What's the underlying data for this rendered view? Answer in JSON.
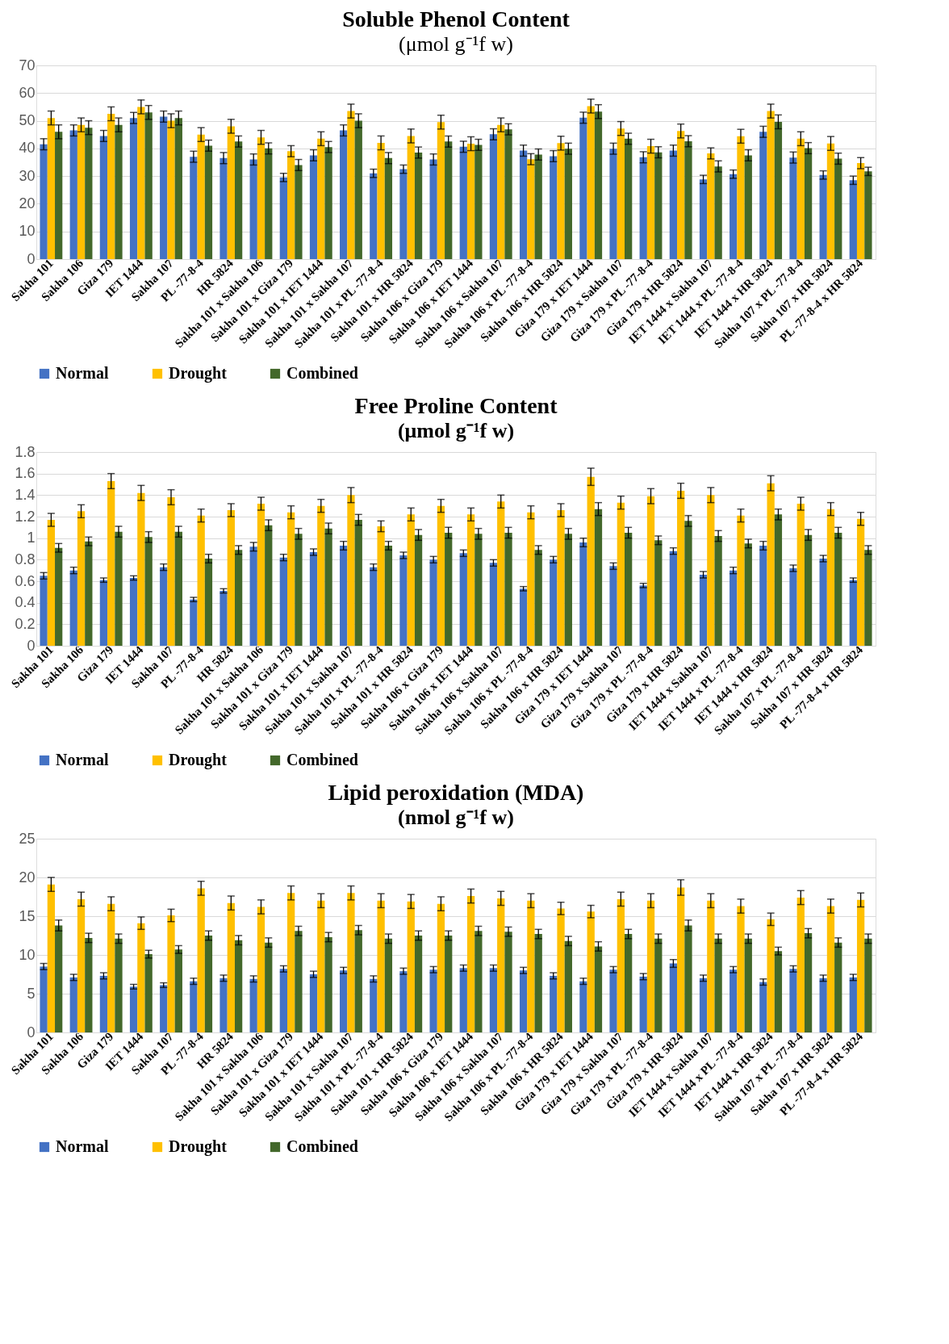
{
  "chart_data": [
    {
      "type": "bar",
      "title": "Soluble Phenol Content",
      "subtitle": "(μmol g⁻¹f w)",
      "categories": [
        "Sakha 101",
        "Sakha 106",
        "Giza 179",
        "IET 1444",
        "Sakha 107",
        "PL -77-8-4",
        "HR 5824",
        "Sakha 101 x Sakha 106",
        "Sakha 101 x Giza 179",
        "Sakha 101 x IET 1444",
        "Sakha 101 x Sakha 107",
        "Sakha 101 x PL -77-8-4",
        "Sakha 101 x HR 5824",
        "Sakha 106 x Giza 179",
        "Sakha 106 x IET 1444",
        "Sakha 106 x Sakha 107",
        "Sakha 106 x PL -77-8-4",
        "Sakha 106 x HR 5824",
        "Giza 179 x IET 1444",
        "Giza 179 x Sakha 107",
        "Giza 179 x PL -77-8-4",
        "Giza 179 x HR 5824",
        "IET 1444 x Sakha 107",
        "IET 1444 x PL -77-8-4",
        "IET 1444 x HR 5824",
        "Sakha 107 x PL -77-8-4",
        "Sakha 107 x HR 5824",
        "PL -77-8-4 x HR 5824"
      ],
      "series": [
        {
          "name": "Normal",
          "color": "#4472c4",
          "values": [
            41.5,
            46.5,
            44.5,
            51,
            51.5,
            37,
            36.5,
            36,
            29.5,
            37.5,
            46.5,
            31,
            32.5,
            36,
            40.6,
            45.1,
            39.2,
            37.2,
            51.1,
            39.9,
            36.8,
            39.2,
            28.8,
            30.7,
            46,
            36.7,
            30.4,
            28.5
          ],
          "errors": [
            2,
            2,
            2,
            2,
            2,
            2,
            2,
            2,
            1.5,
            2,
            2,
            1.5,
            1.5,
            2,
            2,
            2,
            2,
            2,
            2,
            2,
            2,
            2,
            1.5,
            1.5,
            2,
            2,
            1.5,
            1.5
          ]
        },
        {
          "name": "Drought",
          "color": "#ffc000",
          "values": [
            51,
            48.5,
            52.5,
            55,
            50,
            45,
            48,
            44,
            39,
            43.5,
            53.5,
            42,
            44.5,
            49.5,
            41.7,
            48.5,
            36.1,
            41.9,
            55.3,
            47.2,
            40.8,
            46.3,
            38.2,
            44.4,
            53.5,
            43.5,
            41.8,
            34.7
          ],
          "errors": [
            2.5,
            2.5,
            2.5,
            2.5,
            2.5,
            2.5,
            2.5,
            2.5,
            2,
            2.5,
            2.5,
            2.5,
            2.5,
            2.5,
            2.5,
            2.5,
            2,
            2.5,
            2.5,
            2.5,
            2.5,
            2.5,
            2,
            2.5,
            2.5,
            2.5,
            2.5,
            2
          ]
        },
        {
          "name": "Combined",
          "color": "#43682b",
          "values": [
            46,
            47.5,
            48.5,
            53,
            51,
            41,
            42.5,
            40,
            34,
            40.5,
            50,
            36.5,
            38.5,
            42.5,
            41.3,
            46.9,
            37.8,
            39.9,
            53.3,
            43.5,
            38.6,
            42.6,
            33.5,
            37.5,
            49.6,
            40.1,
            36.3,
            31.7
          ],
          "errors": [
            2.5,
            2.5,
            2.5,
            2.5,
            2.5,
            2,
            2,
            2,
            2,
            2,
            2.5,
            2,
            2,
            2,
            2,
            2,
            2,
            2,
            2.5,
            2,
            2,
            2,
            2,
            2,
            2.5,
            2,
            2,
            1.5
          ]
        }
      ],
      "ylim": [
        0,
        70
      ],
      "yticks": [
        0,
        10,
        20,
        30,
        40,
        50,
        60,
        70
      ],
      "grid": "y",
      "legend": "bottom"
    },
    {
      "type": "bar",
      "title": "Free Proline Content",
      "subtitle": "(μmol g⁻¹f w)",
      "categories": [
        "Sakha 101",
        "Sakha 106",
        "Giza 179",
        "IET 1444",
        "Sakha 107",
        "PL -77-8-4",
        "HR 5824",
        "Sakha 101 x Sakha 106",
        "Sakha 101 x Giza 179",
        "Sakha 101 x IET 1444",
        "Sakha 101 x Sakha 107",
        "Sakha 101 x PL -77-8-4",
        "Sakha 101 x HR 5824",
        "Sakha 106 x Giza 179",
        "Sakha 106 x IET 1444",
        "Sakha 106 x Sakha 107",
        "Sakha 106 x PL -77-8-4",
        "Sakha 106 x HR 5824",
        "Giza 179 x IET 1444",
        "Giza 179 x Sakha 107",
        "Giza 179 x PL -77-8-4",
        "Giza 179 x HR 5824",
        "IET 1444 x Sakha 107",
        "IET 1444 x PL -77-8-4",
        "IET 1444 x HR 5824",
        "Sakha 107 x PL -77-8-4",
        "Sakha 107 x HR 5824",
        "PL -77-8-4 x HR 5824"
      ],
      "series": [
        {
          "name": "Normal",
          "color": "#4472c4",
          "values": [
            0.65,
            0.7,
            0.61,
            0.63,
            0.73,
            0.43,
            0.51,
            0.92,
            0.82,
            0.87,
            0.93,
            0.73,
            0.84,
            0.8,
            0.86,
            0.77,
            0.53,
            0.8,
            0.96,
            0.74,
            0.56,
            0.88,
            0.66,
            0.7,
            0.93,
            0.72,
            0.81,
            0.61
          ],
          "errors": [
            0.03,
            0.03,
            0.02,
            0.02,
            0.03,
            0.02,
            0.02,
            0.04,
            0.03,
            0.03,
            0.04,
            0.03,
            0.03,
            0.03,
            0.03,
            0.03,
            0.02,
            0.03,
            0.04,
            0.03,
            0.02,
            0.03,
            0.03,
            0.03,
            0.04,
            0.03,
            0.03,
            0.02
          ]
        },
        {
          "name": "Drought",
          "color": "#ffc000",
          "values": [
            1.17,
            1.25,
            1.53,
            1.42,
            1.38,
            1.21,
            1.26,
            1.32,
            1.24,
            1.3,
            1.4,
            1.11,
            1.22,
            1.3,
            1.22,
            1.34,
            1.24,
            1.26,
            1.57,
            1.33,
            1.39,
            1.44,
            1.4,
            1.21,
            1.51,
            1.32,
            1.27,
            1.18
          ],
          "errors": [
            0.06,
            0.06,
            0.07,
            0.07,
            0.07,
            0.06,
            0.06,
            0.06,
            0.06,
            0.06,
            0.07,
            0.05,
            0.06,
            0.06,
            0.06,
            0.06,
            0.06,
            0.06,
            0.08,
            0.06,
            0.07,
            0.07,
            0.07,
            0.06,
            0.07,
            0.06,
            0.06,
            0.06
          ]
        },
        {
          "name": "Combined",
          "color": "#43682b",
          "values": [
            0.91,
            0.97,
            1.06,
            1.01,
            1.06,
            0.81,
            0.89,
            1.12,
            1.04,
            1.09,
            1.17,
            0.93,
            1.03,
            1.05,
            1.04,
            1.05,
            0.89,
            1.04,
            1.27,
            1.05,
            0.98,
            1.16,
            1.02,
            0.95,
            1.22,
            1.03,
            1.05,
            0.89
          ],
          "errors": [
            0.04,
            0.04,
            0.05,
            0.05,
            0.05,
            0.04,
            0.04,
            0.05,
            0.05,
            0.05,
            0.05,
            0.04,
            0.05,
            0.05,
            0.05,
            0.05,
            0.04,
            0.05,
            0.06,
            0.05,
            0.04,
            0.05,
            0.05,
            0.04,
            0.05,
            0.05,
            0.05,
            0.04
          ]
        }
      ],
      "ylim": [
        0,
        1.8
      ],
      "yticks": [
        0,
        0.2,
        0.4,
        0.6,
        0.8,
        1,
        1.2,
        1.4,
        1.6,
        1.8
      ],
      "grid": "y",
      "legend": "bottom"
    },
    {
      "type": "bar",
      "title": "Lipid peroxidation (MDA)",
      "subtitle": "(nmol g⁻¹f w)",
      "categories": [
        "Sakha 101",
        "Sakha 106",
        "Giza 179",
        "IET 1444",
        "Sakha 107",
        "PL -77-8-4",
        "HR 5824",
        "Sakha 101 x Sakha 106",
        "Sakha 101 x Giza 179",
        "Sakha 101 x IET 1444",
        "Sakha 101 x Sakha 107",
        "Sakha 101 x PL -77-8-4",
        "Sakha 101 x HR 5824",
        "Sakha 106 x Giza 179",
        "Sakha 106 x IET 1444",
        "Sakha 106 x Sakha 107",
        "Sakha 106 x PL -77-8-4",
        "Sakha 106 x HR 5824",
        "Giza 179 x IET 1444",
        "Giza 179 x Sakha 107",
        "Giza 179 x PL -77-8-4",
        "Giza 179 x HR 5824",
        "IET 1444 x Sakha 107",
        "IET 1444 x PL -77-8-4",
        "IET 1444 x HR 5824",
        "Sakha 107 x PL -77-8-4",
        "Sakha 107 x HR 5824",
        "PL -77-8-4 x HR 5824"
      ],
      "series": [
        {
          "name": "Normal",
          "color": "#4472c4",
          "values": [
            8.5,
            7.1,
            7.3,
            5.9,
            6.1,
            6.6,
            7.0,
            6.9,
            8.2,
            7.5,
            8.0,
            6.9,
            7.9,
            8.1,
            8.3,
            8.3,
            8.0,
            7.3,
            6.6,
            8.1,
            7.2,
            8.9,
            7.0,
            8.1,
            6.5,
            8.2,
            7.0,
            7.1
          ],
          "errors": [
            0.4,
            0.4,
            0.4,
            0.3,
            0.3,
            0.4,
            0.4,
            0.4,
            0.4,
            0.4,
            0.4,
            0.4,
            0.4,
            0.4,
            0.4,
            0.4,
            0.4,
            0.4,
            0.4,
            0.4,
            0.4,
            0.5,
            0.4,
            0.4,
            0.4,
            0.4,
            0.4,
            0.4
          ]
        },
        {
          "name": "Drought",
          "color": "#ffc000",
          "values": [
            19.1,
            17.2,
            16.6,
            14.1,
            15.1,
            18.6,
            16.7,
            16.2,
            18.0,
            17.0,
            18.0,
            17.0,
            16.9,
            16.6,
            17.6,
            17.3,
            17.0,
            16.0,
            15.6,
            17.2,
            17.0,
            18.7,
            17.0,
            16.3,
            14.6,
            17.4,
            16.3,
            17.1
          ],
          "errors": [
            0.9,
            0.9,
            0.9,
            0.8,
            0.8,
            0.9,
            0.9,
            0.9,
            0.9,
            0.9,
            0.9,
            0.9,
            0.9,
            0.9,
            0.9,
            0.9,
            0.9,
            0.8,
            0.8,
            0.9,
            0.9,
            1,
            0.9,
            0.9,
            0.8,
            0.9,
            0.9,
            0.9
          ]
        },
        {
          "name": "Combined",
          "color": "#43682b",
          "values": [
            13.8,
            12.2,
            12.1,
            10.1,
            10.7,
            12.5,
            11.9,
            11.6,
            13.1,
            12.3,
            13.2,
            12.1,
            12.5,
            12.5,
            13.1,
            13.0,
            12.7,
            11.8,
            11.1,
            12.7,
            12.1,
            13.8,
            12.1,
            12.1,
            10.5,
            12.8,
            11.6,
            12.1
          ],
          "errors": [
            0.7,
            0.6,
            0.6,
            0.5,
            0.5,
            0.6,
            0.6,
            0.6,
            0.6,
            0.6,
            0.6,
            0.6,
            0.6,
            0.6,
            0.6,
            0.6,
            0.6,
            0.6,
            0.6,
            0.6,
            0.6,
            0.7,
            0.6,
            0.6,
            0.5,
            0.6,
            0.6,
            0.6
          ]
        }
      ],
      "ylim": [
        0,
        25
      ],
      "yticks": [
        0,
        5,
        10,
        15,
        20,
        25
      ],
      "grid": "y",
      "legend": "bottom"
    }
  ]
}
